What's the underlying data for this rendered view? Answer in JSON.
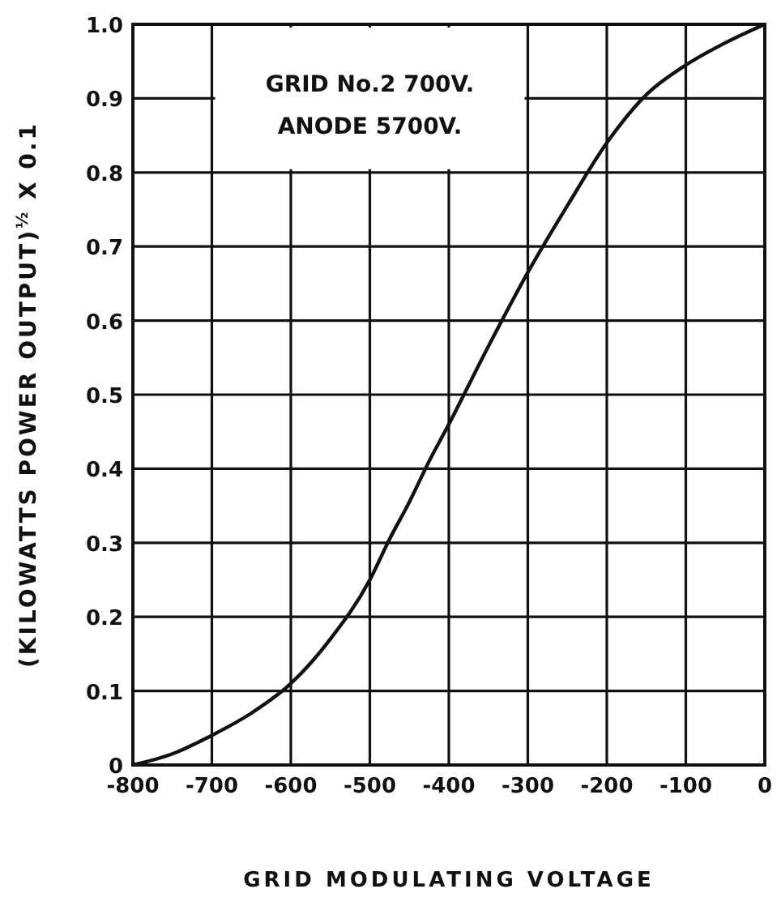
{
  "chart_data": {
    "type": "line",
    "xlabel": "GRID MODULATING VOLTAGE",
    "ylabel": "(KILOWATTS POWER OUTPUT)$^{½}$ X 0.1",
    "annotations": [
      "GRID No.2  700V.",
      "ANODE  5700V."
    ],
    "x": [
      -800,
      -750,
      -700,
      -650,
      -600,
      -550,
      -500,
      -475,
      -450,
      -425,
      -400,
      -350,
      -300,
      -250,
      -200,
      -150,
      -100,
      -50,
      0
    ],
    "series": [
      {
        "color": "#111111",
        "values": [
          0,
          0.015,
          0.04,
          0.07,
          0.11,
          0.17,
          0.25,
          0.305,
          0.355,
          0.41,
          0.46,
          0.565,
          0.665,
          0.755,
          0.84,
          0.905,
          0.945,
          0.975,
          1.0
        ]
      }
    ],
    "xlim": [
      -800,
      0
    ],
    "xticks": [
      -800,
      -700,
      -600,
      -500,
      -400,
      -300,
      -200,
      -100,
      0
    ],
    "ylim": [
      0,
      1.0
    ],
    "yticks": [
      0,
      0.1,
      0.2,
      0.3,
      0.4,
      0.5,
      0.6,
      0.7,
      0.8,
      0.9,
      {
        "value": 1.0,
        "label": "1.0"
      }
    ],
    "grid": true,
    "marker": "none",
    "line_style": "solid"
  }
}
